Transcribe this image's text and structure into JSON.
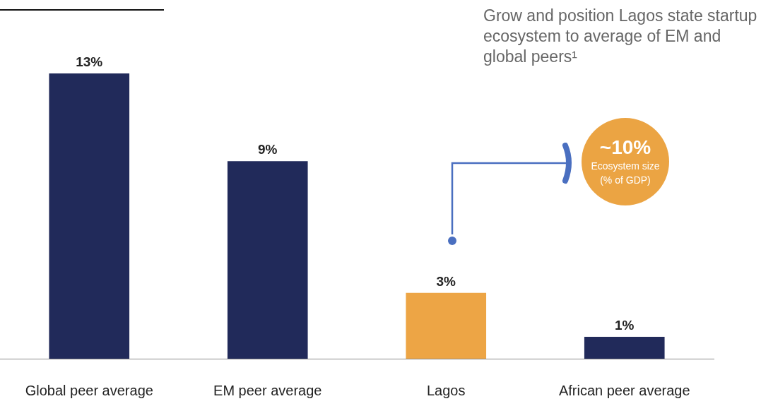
{
  "chart_data": {
    "type": "bar",
    "title": "Grow and position Lagos state startup ecosystem to average of EM and global peers¹",
    "categories": [
      "Global peer average",
      "EM peer average",
      "Lagos",
      "African peer average"
    ],
    "values": [
      13,
      9,
      3,
      1
    ],
    "colors": [
      "#212a5a",
      "#212a5a",
      "#eda545",
      "#212a5a"
    ],
    "value_labels": [
      "13%",
      "9%",
      "3%",
      "1%"
    ],
    "annotations": [
      "~10%",
      "Ecosystem size",
      "(% of GDP)"
    ],
    "grid": false,
    "legend": false
  }
}
